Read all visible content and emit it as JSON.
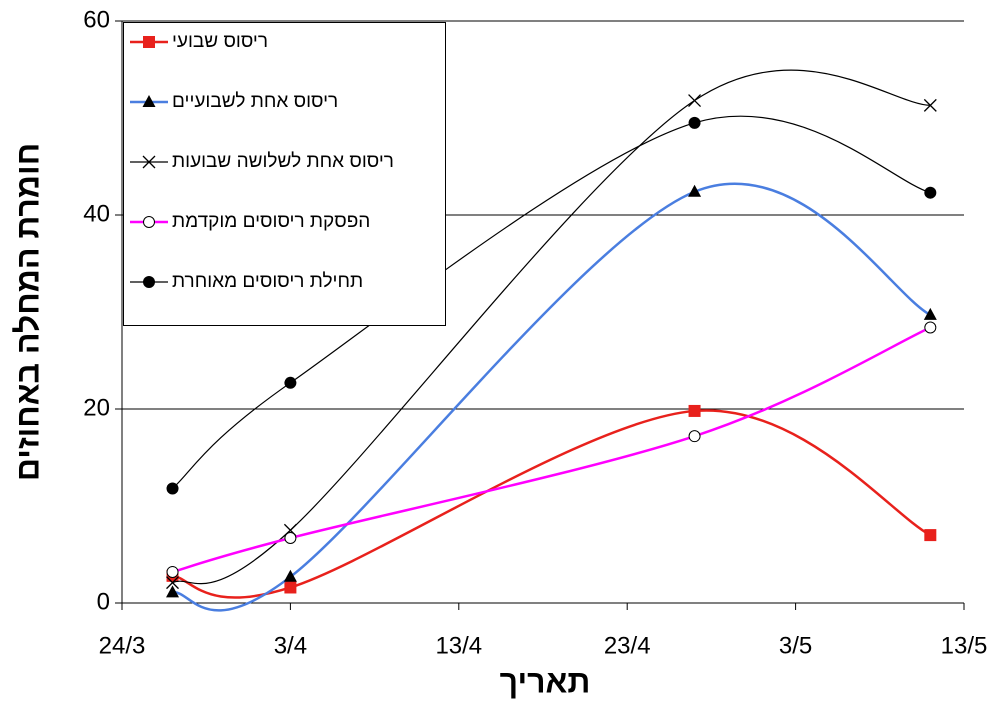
{
  "chart_data": {
    "type": "line",
    "x_label": "תאריך",
    "y_label": "חומרת המחלה באחוזים",
    "x": [
      "27/3",
      "3/4",
      "27/4",
      "11/5"
    ],
    "xlim": [
      "24/3",
      "13/5"
    ],
    "xticks": [
      "24/3",
      "3/4",
      "13/4",
      "23/4",
      "3/5",
      "13/5"
    ],
    "ylim": [
      0,
      60
    ],
    "yticks": [
      0,
      20,
      40,
      60
    ],
    "grid": true,
    "smooth": true,
    "legend": "top-left",
    "series": [
      {
        "name": "ריסוס שבועי",
        "color": "#e8211c",
        "marker": "square",
        "values": [
          2.8,
          1.6,
          19.8,
          7.0
        ]
      },
      {
        "name": "ריסוס אחת לשבועיים",
        "color": "#4a7ee0",
        "marker": "triangle",
        "values": [
          1.1,
          2.7,
          42.4,
          29.7
        ]
      },
      {
        "name": "ריסוס אחת לשלושה שבועות",
        "color": "#000000",
        "marker": "x",
        "values": [
          2.1,
          7.5,
          51.8,
          51.3
        ]
      },
      {
        "name": "הפסקת ריסוסים מוקדמת",
        "color": "#ff00ff",
        "marker": "open-circle",
        "values": [
          3.2,
          6.7,
          17.2,
          28.4
        ]
      },
      {
        "name": "תחילת ריסוסים מאוחרת",
        "color": "#000000",
        "marker": "circle",
        "values": [
          11.8,
          22.7,
          49.5,
          42.3
        ]
      }
    ]
  }
}
